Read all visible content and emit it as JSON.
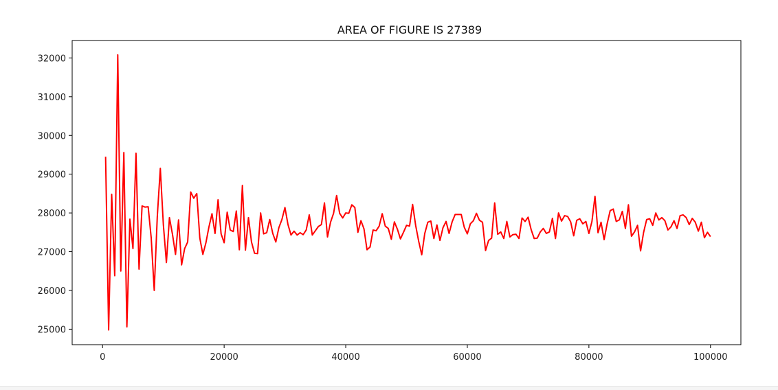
{
  "chart_data": {
    "type": "line",
    "title": "AREA OF FIGURE IS 27389",
    "xlabel": "",
    "ylabel": "",
    "xlim": [
      -5000,
      105000
    ],
    "ylim": [
      24600,
      32450
    ],
    "x_ticks": [
      0,
      20000,
      40000,
      60000,
      80000,
      100000
    ],
    "x_tick_labels": [
      "0",
      "20000",
      "40000",
      "60000",
      "80000",
      "100000"
    ],
    "y_ticks": [
      25000,
      26000,
      27000,
      28000,
      29000,
      30000,
      31000,
      32000
    ],
    "y_tick_labels": [
      "25000",
      "26000",
      "27000",
      "28000",
      "29000",
      "30000",
      "31000",
      "32000"
    ],
    "grid": false,
    "series": [
      {
        "color": "#ff0000",
        "x": [
          500,
          1000,
          1500,
          2000,
          2500,
          3000,
          3500,
          4000,
          4500,
          5000,
          5500,
          6000,
          6500,
          7000,
          7500,
          8000,
          8500,
          9000,
          9500,
          10000,
          10500,
          11000,
          11500,
          12000,
          12500,
          13000,
          13500,
          14000,
          14500,
          15000,
          15500,
          16000,
          16500,
          17000,
          17500,
          18000,
          18500,
          19000,
          19500,
          20000,
          20500,
          21000,
          21500,
          22000,
          22500,
          23000,
          23500,
          24000,
          24500,
          25000,
          25500,
          26000,
          26500,
          27000,
          27500,
          28000,
          28500,
          29000,
          29500,
          30000,
          30500,
          31000,
          31500,
          32000,
          32500,
          33000,
          33500,
          34000,
          34500,
          35000,
          35500,
          36000,
          36500,
          37000,
          37500,
          38000,
          38500,
          39000,
          39500,
          40000,
          40500,
          41000,
          41500,
          42000,
          42500,
          43000,
          43500,
          44000,
          44500,
          45000,
          45500,
          46000,
          46500,
          47000,
          47500,
          48000,
          48500,
          49000,
          49500,
          50000,
          50500,
          51000,
          51500,
          52000,
          52500,
          53000,
          53500,
          54000,
          54500,
          55000,
          55500,
          56000,
          56500,
          57000,
          57500,
          58000,
          58500,
          59000,
          59500,
          60000,
          60500,
          61000,
          61500,
          62000,
          62500,
          63000,
          63500,
          64000,
          64500,
          65000,
          65500,
          66000,
          66500,
          67000,
          67500,
          68000,
          68500,
          69000,
          69500,
          70000,
          70500,
          71000,
          71500,
          72000,
          72500,
          73000,
          73500,
          74000,
          74500,
          75000,
          75500,
          76000,
          76500,
          77000,
          77500,
          78000,
          78500,
          79000,
          79500,
          80000,
          80500,
          81000,
          81500,
          82000,
          82500,
          83000,
          83500,
          84000,
          84500,
          85000,
          85500,
          86000,
          86500,
          87000,
          87500,
          88000,
          88500,
          89000,
          89500,
          90000,
          90500,
          91000,
          91500,
          92000,
          92500,
          93000,
          93500,
          94000,
          94500,
          95000,
          95500,
          96000,
          96500,
          97000,
          97500,
          98000,
          98500,
          99000,
          99500,
          100000
        ],
        "y": [
          29450,
          24980,
          28480,
          26380,
          32080,
          26500,
          29560,
          25060,
          27840,
          27080,
          29540,
          26550,
          28180,
          28150,
          28160,
          27360,
          26000,
          27900,
          29150,
          27700,
          26720,
          27880,
          27450,
          26930,
          27820,
          26660,
          27080,
          27250,
          28540,
          28380,
          28500,
          27350,
          26930,
          27230,
          27640,
          27980,
          27470,
          28340,
          27460,
          27230,
          28020,
          27560,
          27520,
          28050,
          27050,
          28710,
          27040,
          27880,
          27250,
          26960,
          26950,
          28000,
          27460,
          27490,
          27830,
          27470,
          27250,
          27620,
          27830,
          28140,
          27700,
          27430,
          27530,
          27430,
          27490,
          27440,
          27560,
          27950,
          27430,
          27540,
          27650,
          27700,
          28260,
          27380,
          27760,
          27990,
          28450,
          27990,
          27870,
          28000,
          27990,
          28210,
          28140,
          27500,
          27800,
          27590,
          27050,
          27120,
          27560,
          27540,
          27660,
          27980,
          27660,
          27600,
          27320,
          27770,
          27580,
          27330,
          27500,
          27680,
          27660,
          28220,
          27680,
          27270,
          26920,
          27470,
          27760,
          27790,
          27340,
          27690,
          27290,
          27620,
          27780,
          27470,
          27770,
          27960,
          27960,
          27960,
          27630,
          27460,
          27720,
          27800,
          27990,
          27810,
          27760,
          27030,
          27290,
          27350,
          28260,
          27450,
          27510,
          27340,
          27780,
          27380,
          27440,
          27450,
          27340,
          27870,
          27780,
          27890,
          27570,
          27340,
          27350,
          27510,
          27600,
          27470,
          27510,
          27860,
          27340,
          28000,
          27790,
          27930,
          27910,
          27770,
          27410,
          27810,
          27850,
          27720,
          27780,
          27470,
          27780,
          28430,
          27490,
          27760,
          27310,
          27720,
          28060,
          28100,
          27780,
          27820,
          28040,
          27600,
          28210,
          27400,
          27510,
          27680,
          27020,
          27500,
          27830,
          27850,
          27680,
          28000,
          27820,
          27880,
          27800,
          27560,
          27640,
          27800,
          27600,
          27930,
          27950,
          27880,
          27700,
          27860,
          27760,
          27530,
          27760,
          27360,
          27500,
          27390
        ]
      }
    ]
  }
}
